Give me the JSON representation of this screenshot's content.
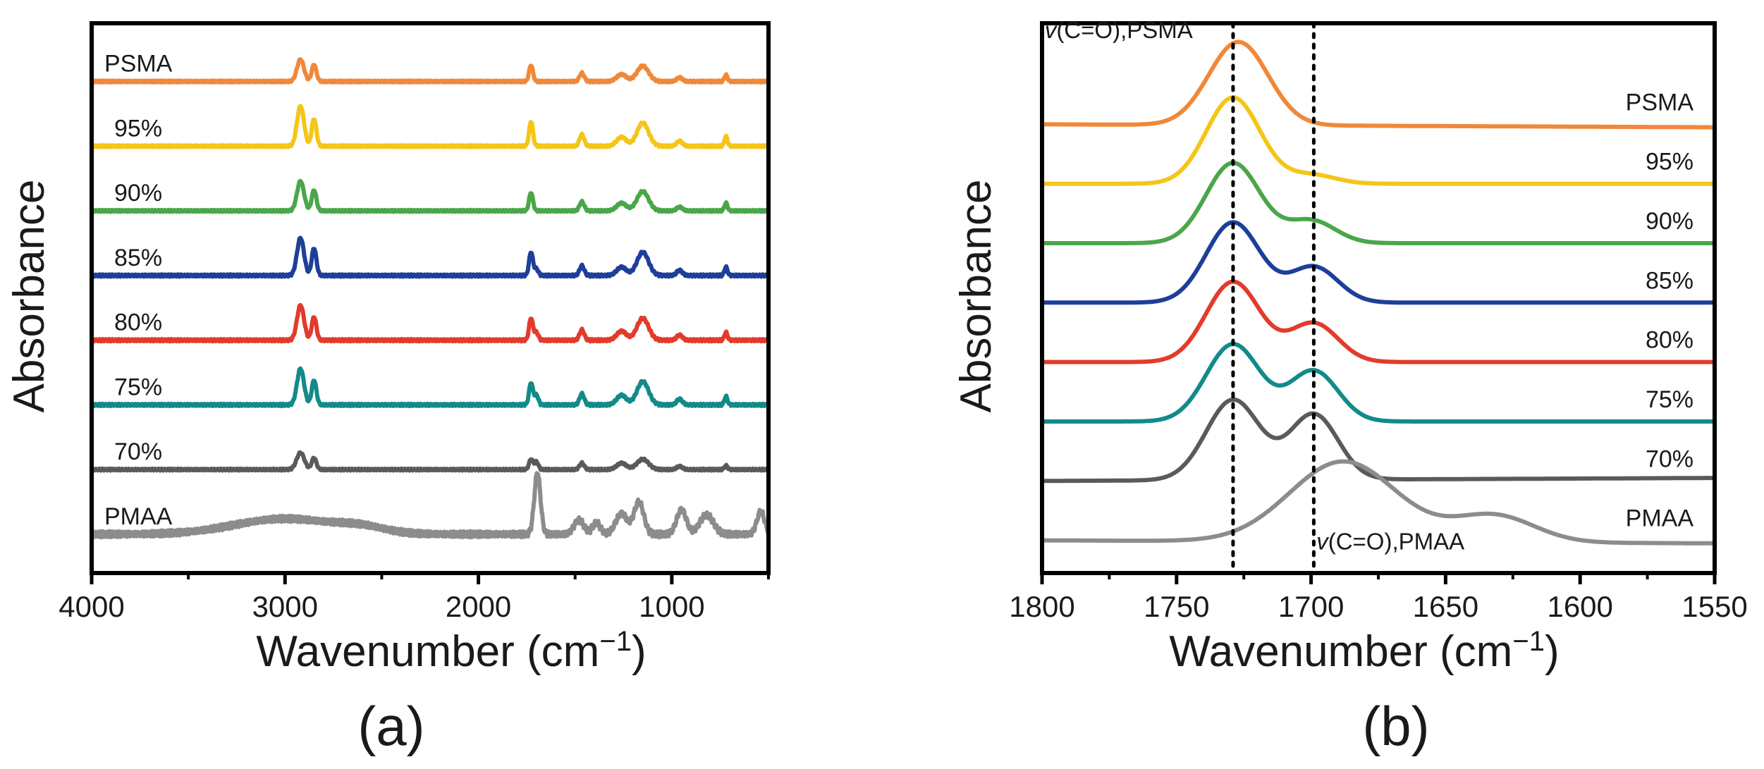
{
  "chart_data": [
    {
      "type": "line",
      "panel_label": "(a)",
      "xlabel": "Wavenumber (cm",
      "xlabel_sup": "−1",
      "xlabel_close": ")",
      "ylabel": "Absorbance",
      "xlim": [
        4000,
        500
      ],
      "x_ticks": [
        4000,
        3000,
        2000,
        1000
      ],
      "x_tick_labels": [
        "4000",
        "3000",
        "2000",
        "1000"
      ],
      "grid": false,
      "y_ticks": false,
      "series": [
        {
          "name": "PSMA",
          "color": "#f0883a",
          "baseline": 7.0,
          "noise": 0.01,
          "peaks": [
            [
              2920,
              0.34,
              18
            ],
            [
              2850,
              0.26,
              12
            ],
            [
              1728,
              0.25,
              10
            ],
            [
              1465,
              0.13,
              12
            ],
            [
              1260,
              0.11,
              25
            ],
            [
              1150,
              0.24,
              30
            ],
            [
              960,
              0.06,
              15
            ],
            [
              720,
              0.1,
              8
            ]
          ]
        },
        {
          "name": "95%",
          "color": "#f5c518",
          "baseline": 6.0,
          "noise": 0.01,
          "peaks": [
            [
              2920,
              0.62,
              18
            ],
            [
              2850,
              0.42,
              12
            ],
            [
              1728,
              0.38,
              10
            ],
            [
              1465,
              0.18,
              12
            ],
            [
              1260,
              0.14,
              25
            ],
            [
              1150,
              0.36,
              30
            ],
            [
              960,
              0.08,
              15
            ],
            [
              720,
              0.15,
              8
            ]
          ]
        },
        {
          "name": "90%",
          "color": "#4aa64a",
          "baseline": 5.0,
          "noise": 0.01,
          "peaks": [
            [
              2920,
              0.46,
              18
            ],
            [
              2850,
              0.32,
              12
            ],
            [
              1728,
              0.28,
              10
            ],
            [
              1465,
              0.14,
              12
            ],
            [
              1260,
              0.12,
              25
            ],
            [
              1150,
              0.3,
              30
            ],
            [
              960,
              0.06,
              15
            ],
            [
              720,
              0.12,
              8
            ]
          ]
        },
        {
          "name": "85%",
          "color": "#1e3f99",
          "baseline": 4.0,
          "noise": 0.012,
          "peaks": [
            [
              2920,
              0.58,
              18
            ],
            [
              2850,
              0.42,
              12
            ],
            [
              1728,
              0.36,
              10
            ],
            [
              1700,
              0.1,
              10
            ],
            [
              1465,
              0.15,
              12
            ],
            [
              1260,
              0.13,
              25
            ],
            [
              1150,
              0.36,
              30
            ],
            [
              960,
              0.08,
              15
            ],
            [
              720,
              0.13,
              8
            ]
          ]
        },
        {
          "name": "80%",
          "color": "#e23b2c",
          "baseline": 3.0,
          "noise": 0.012,
          "peaks": [
            [
              2920,
              0.54,
              18
            ],
            [
              2850,
              0.36,
              12
            ],
            [
              1728,
              0.34,
              10
            ],
            [
              1700,
              0.12,
              10
            ],
            [
              1465,
              0.16,
              12
            ],
            [
              1260,
              0.14,
              25
            ],
            [
              1150,
              0.34,
              30
            ],
            [
              960,
              0.08,
              15
            ],
            [
              720,
              0.12,
              8
            ]
          ]
        },
        {
          "name": "75%",
          "color": "#138a8a",
          "baseline": 2.0,
          "noise": 0.012,
          "peaks": [
            [
              2920,
              0.56,
              18
            ],
            [
              2850,
              0.38,
              12
            ],
            [
              1728,
              0.34,
              10
            ],
            [
              1700,
              0.15,
              10
            ],
            [
              1465,
              0.17,
              12
            ],
            [
              1260,
              0.15,
              25
            ],
            [
              1150,
              0.36,
              30
            ],
            [
              960,
              0.09,
              15
            ],
            [
              720,
              0.13,
              8
            ]
          ]
        },
        {
          "name": "70%",
          "color": "#5a5a5a",
          "baseline": 1.0,
          "noise": 0.01,
          "peaks": [
            [
              2920,
              0.26,
              20
            ],
            [
              2850,
              0.18,
              12
            ],
            [
              1728,
              0.16,
              10
            ],
            [
              1700,
              0.12,
              10
            ],
            [
              1465,
              0.1,
              12
            ],
            [
              1260,
              0.1,
              25
            ],
            [
              1150,
              0.16,
              30
            ],
            [
              960,
              0.05,
              15
            ],
            [
              720,
              0.06,
              8
            ]
          ]
        },
        {
          "name": "PMAA",
          "color": "#8c8c8c",
          "baseline": 0.0,
          "noise": 0.03,
          "peaks": [
            [
              3000,
              0.24,
              260
            ],
            [
              2600,
              0.08,
              120
            ],
            [
              1695,
              0.95,
              16
            ],
            [
              1480,
              0.22,
              25
            ],
            [
              1390,
              0.18,
              20
            ],
            [
              1260,
              0.32,
              30
            ],
            [
              1170,
              0.5,
              25
            ],
            [
              950,
              0.38,
              25
            ],
            [
              820,
              0.3,
              35
            ],
            [
              540,
              0.35,
              20
            ]
          ]
        }
      ]
    },
    {
      "type": "line",
      "panel_label": "(b)",
      "xlabel": "Wavenumber (cm",
      "xlabel_sup": "−1",
      "xlabel_close": ")",
      "ylabel": "Absorbance",
      "xlim": [
        1800,
        1550
      ],
      "x_ticks": [
        1800,
        1750,
        1700,
        1650,
        1600,
        1550
      ],
      "x_tick_labels": [
        "1800",
        "1750",
        "1700",
        "1650",
        "1600",
        "1550"
      ],
      "grid": false,
      "y_ticks": false,
      "reference_lines": [
        1729,
        1699
      ],
      "annotations": [
        {
          "text_italic": "v",
          "text": "(C=O),PSMA",
          "x": 1799,
          "y": 8.45
        },
        {
          "text_italic": "v",
          "text": "(C=O),PMAA",
          "x": 1698,
          "y": -0.15
        }
      ],
      "series": [
        {
          "name": "PSMA",
          "color": "#f0883a",
          "baseline": 7.0,
          "tail": 6.95,
          "peaks": [
            [
              1727,
              1.4,
              11
            ]
          ]
        },
        {
          "name": "95%",
          "color": "#f5c518",
          "baseline": 6.0,
          "tail": 6.0,
          "peaks": [
            [
              1729,
              1.45,
              10
            ],
            [
              1700,
              0.15,
              9
            ]
          ]
        },
        {
          "name": "90%",
          "color": "#4aa64a",
          "baseline": 5.0,
          "tail": 5.0,
          "peaks": [
            [
              1729,
              1.35,
              10
            ],
            [
              1700,
              0.38,
              9
            ]
          ]
        },
        {
          "name": "85%",
          "color": "#1e3f99",
          "baseline": 4.0,
          "tail": 4.0,
          "peaks": [
            [
              1729,
              1.35,
              10
            ],
            [
              1699,
              0.6,
              9
            ]
          ]
        },
        {
          "name": "80%",
          "color": "#e23b2c",
          "baseline": 3.0,
          "tail": 3.0,
          "peaks": [
            [
              1729,
              1.35,
              10
            ],
            [
              1699,
              0.65,
              9
            ]
          ]
        },
        {
          "name": "75%",
          "color": "#138a8a",
          "baseline": 2.0,
          "tail": 2.0,
          "peaks": [
            [
              1729,
              1.3,
              10
            ],
            [
              1699,
              0.85,
              9
            ]
          ]
        },
        {
          "name": "70%",
          "color": "#5a5a5a",
          "baseline": 1.0,
          "tail": 1.05,
          "peaks": [
            [
              1729,
              1.35,
              10
            ],
            [
              1699,
              1.1,
              9
            ]
          ]
        },
        {
          "name": "PMAA",
          "color": "#8c8c8c",
          "baseline": 0.0,
          "tail": -0.05,
          "peaks": [
            [
              1688,
              1.35,
              20
            ],
            [
              1632,
              0.45,
              15
            ]
          ]
        }
      ]
    }
  ]
}
